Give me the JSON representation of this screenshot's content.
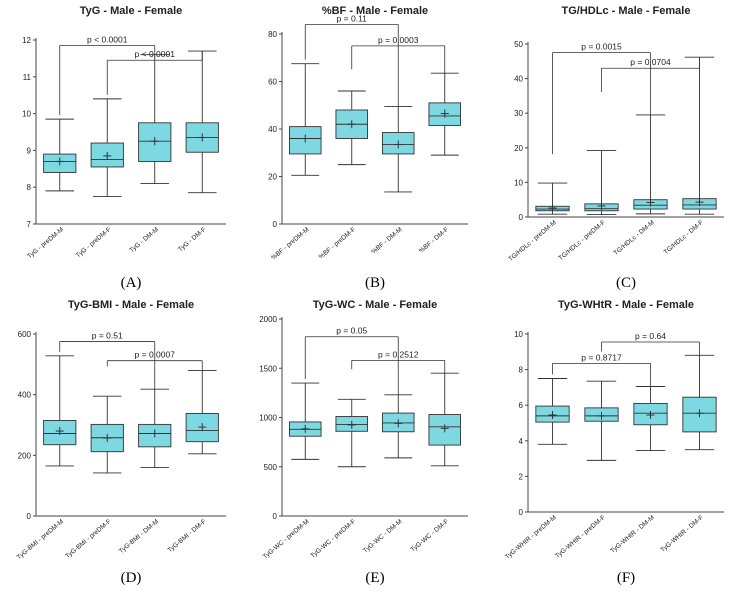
{
  "figure": {
    "type": "box-plot panel figure"
  },
  "chart_data": [
    {
      "type": "box",
      "letter": "(A)",
      "title": "TyG - Male - Female",
      "ylim": [
        7,
        12
      ],
      "yticks": [
        7,
        8,
        9,
        10,
        11,
        12
      ],
      "categories": [
        "TyG - preDM-M",
        "TyG - preDM-F",
        "TyG - DM-M",
        "TyG - DM-F"
      ],
      "boxes": [
        {
          "min": 7.9,
          "q1": 8.4,
          "median": 8.7,
          "q3": 8.9,
          "max": 9.85,
          "mean": 8.7
        },
        {
          "min": 7.75,
          "q1": 8.55,
          "median": 8.75,
          "q3": 9.2,
          "max": 10.4,
          "mean": 8.85
        },
        {
          "min": 8.1,
          "q1": 8.7,
          "median": 9.25,
          "q3": 9.75,
          "max": 11.6,
          "mean": 9.25
        },
        {
          "min": 7.85,
          "q1": 8.95,
          "median": 9.35,
          "q3": 9.75,
          "max": 11.7,
          "mean": 9.35
        }
      ],
      "comparisons": [
        {
          "label": "p < 0.0001",
          "from": 0,
          "to": 2,
          "y": 11.85,
          "min_end": 9.85
        },
        {
          "label": "p < 0.0001",
          "from": 1,
          "to": 3,
          "y": 11.45,
          "min_end": 10.4
        }
      ]
    },
    {
      "type": "box",
      "letter": "(B)",
      "title": "%BF - Male - Female",
      "ylim": [
        0,
        80
      ],
      "yticks": [
        0,
        20,
        40,
        60,
        80
      ],
      "categories": [
        "%BF - preDM-M",
        "%BF - preDM-F",
        "%BF - DM-M",
        "%BF - DM-F"
      ],
      "boxes": [
        {
          "min": 20.5,
          "q1": 29.5,
          "median": 36,
          "q3": 41,
          "max": 67.5,
          "mean": 36
        },
        {
          "min": 25,
          "q1": 36,
          "median": 42,
          "q3": 48,
          "max": 56,
          "mean": 42
        },
        {
          "min": 13.5,
          "q1": 29.5,
          "median": 33.5,
          "q3": 38.5,
          "max": 49.5,
          "mean": 33.5
        },
        {
          "min": 29,
          "q1": 41.5,
          "median": 45.5,
          "q3": 51,
          "max": 63.5,
          "mean": 46.5
        }
      ],
      "comparisons": [
        {
          "label": "p = 0.11",
          "from": 0,
          "to": 2,
          "y": 84,
          "min_end": 67.5
        },
        {
          "label": "p = 0.0003",
          "from": 1,
          "to": 3,
          "y": 75,
          "min_end": 63.5
        }
      ]
    },
    {
      "type": "box",
      "letter": "(C)",
      "title": "TG/HDLc - Male - Female",
      "ylim": [
        0,
        50
      ],
      "yticks": [
        0,
        10,
        20,
        30,
        40,
        50
      ],
      "categories": [
        "TG/HDLc - preDM-M",
        "TG/HDLc - preDM-F",
        "TG/HDLc - DM-M",
        "TG/HDLc - DM-F"
      ],
      "boxes": [
        {
          "min": 0.8,
          "q1": 1.8,
          "median": 2.3,
          "q3": 3.1,
          "max": 9.8,
          "mean": 2.6
        },
        {
          "min": 0.7,
          "q1": 1.8,
          "median": 2.4,
          "q3": 3.8,
          "max": 19.2,
          "mean": 3.2
        },
        {
          "min": 0.9,
          "q1": 2.3,
          "median": 3.4,
          "q3": 5.0,
          "max": 29.5,
          "mean": 4.2
        },
        {
          "min": 0.8,
          "q1": 2.3,
          "median": 3.5,
          "q3": 5.3,
          "max": 46.2,
          "mean": 4.3
        }
      ],
      "comparisons": [
        {
          "label": "p = 0.0015",
          "from": 0,
          "to": 2,
          "y": 47.5,
          "min_end": 17
        },
        {
          "label": "p = 0.0704",
          "from": 1,
          "to": 3,
          "y": 43,
          "min_end": 35
        }
      ]
    },
    {
      "type": "box",
      "letter": "(D)",
      "title": "TyG-BMI - Male - Female",
      "ylim": [
        0,
        600
      ],
      "yticks": [
        0,
        200,
        400,
        600
      ],
      "categories": [
        "TyG-BMI - preDM-M",
        "TyG-BMI - preDM-F",
        "TyG-BMI - DM-M",
        "TyG-BMI - DM-F"
      ],
      "boxes": [
        {
          "min": 165,
          "q1": 235,
          "median": 272,
          "q3": 315,
          "max": 528,
          "mean": 280
        },
        {
          "min": 142,
          "q1": 212,
          "median": 258,
          "q3": 302,
          "max": 395,
          "mean": 257
        },
        {
          "min": 160,
          "q1": 228,
          "median": 272,
          "q3": 302,
          "max": 418,
          "mean": 272
        },
        {
          "min": 205,
          "q1": 245,
          "median": 282,
          "q3": 338,
          "max": 480,
          "mean": 293
        }
      ],
      "comparisons": [
        {
          "label": "p = 0.51",
          "from": 0,
          "to": 2,
          "y": 575,
          "min_end": 528
        },
        {
          "label": "p = 0.0007",
          "from": 1,
          "to": 3,
          "y": 512,
          "min_end": 480
        }
      ]
    },
    {
      "type": "box",
      "letter": "(E)",
      "title": "TyG-WC - Male - Female",
      "ylim": [
        0,
        2000
      ],
      "yticks": [
        0,
        500,
        1000,
        1500,
        2000
      ],
      "categories": [
        "TyG-WC - preDM-M",
        "TyG-WC - preDM-F",
        "TyG-WC - DM-M",
        "TyG-WC - DM-F"
      ],
      "boxes": [
        {
          "min": 575,
          "q1": 810,
          "median": 880,
          "q3": 955,
          "max": 1350,
          "mean": 885
        },
        {
          "min": 500,
          "q1": 860,
          "median": 930,
          "q3": 1010,
          "max": 1185,
          "mean": 925
        },
        {
          "min": 590,
          "q1": 855,
          "median": 945,
          "q3": 1045,
          "max": 1230,
          "mean": 940
        },
        {
          "min": 510,
          "q1": 720,
          "median": 905,
          "q3": 1030,
          "max": 1450,
          "mean": 890
        }
      ],
      "comparisons": [
        {
          "label": "p = 0.05",
          "from": 0,
          "to": 2,
          "y": 1820,
          "min_end": 1350
        },
        {
          "label": "p = 0.2512",
          "from": 1,
          "to": 3,
          "y": 1580,
          "min_end": 1450
        }
      ]
    },
    {
      "type": "box",
      "letter": "(F)",
      "title": "TyG-WHtR - Male - Female",
      "ylim": [
        0,
        10
      ],
      "yticks": [
        0,
        2,
        4,
        6,
        8,
        10
      ],
      "categories": [
        "TyG-WHtR - preDM-M",
        "TyG-WHtR - preDM-F",
        "TyG-WHtR - DM-M",
        "TyG-WHtR - DM-F"
      ],
      "boxes": [
        {
          "min": 3.8,
          "q1": 5.05,
          "median": 5.4,
          "q3": 5.95,
          "max": 7.5,
          "mean": 5.45
        },
        {
          "min": 2.9,
          "q1": 5.1,
          "median": 5.4,
          "q3": 5.85,
          "max": 7.35,
          "mean": 5.4
        },
        {
          "min": 3.45,
          "q1": 4.9,
          "median": 5.55,
          "q3": 6.1,
          "max": 7.05,
          "mean": 5.45
        },
        {
          "min": 3.5,
          "q1": 4.5,
          "median": 5.55,
          "q3": 6.45,
          "max": 8.8,
          "mean": 5.55
        }
      ],
      "comparisons": [
        {
          "label": "p = 0.64",
          "from": 1,
          "to": 3,
          "y": 9.55,
          "min_end": 8.8
        },
        {
          "label": "p = 0.8717",
          "from": 0,
          "to": 2,
          "y": 8.35,
          "min_end": 7.5
        }
      ]
    }
  ],
  "colors": {
    "box_fill": "#7dd8e2",
    "stroke": "#333333",
    "axis": "#444444"
  }
}
